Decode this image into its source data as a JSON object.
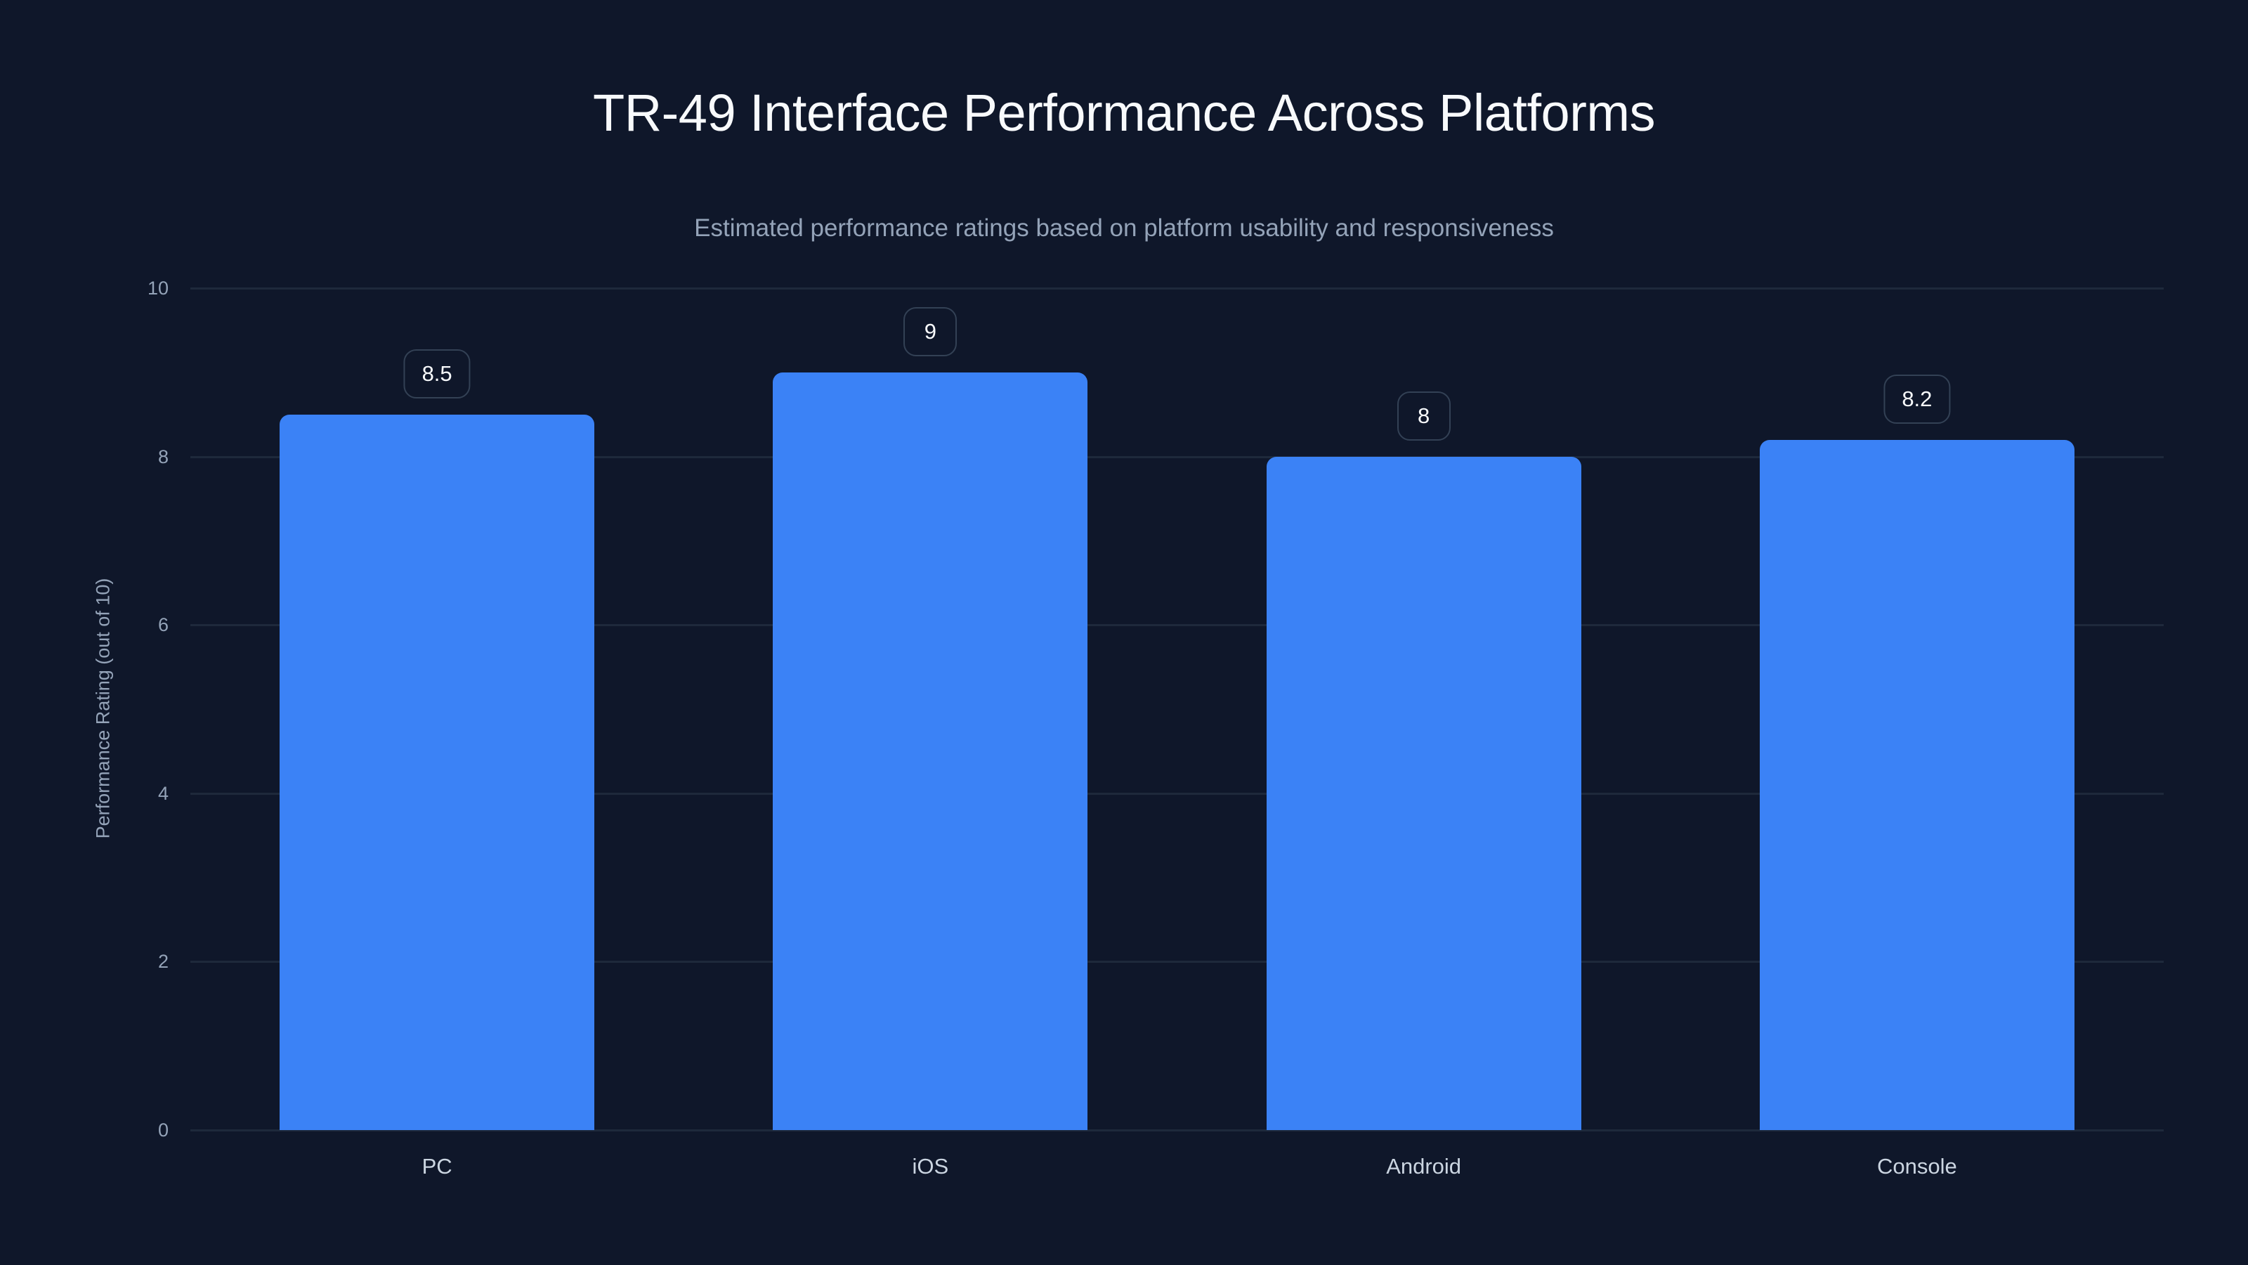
{
  "title": "TR-49 Interface Performance Across Platforms",
  "subtitle": "Estimated performance ratings based on platform usability and responsiveness",
  "colors": {
    "background": "#0f172a",
    "bar": "#3b82f6",
    "grid": "#1e293b",
    "label_border": "#334155"
  },
  "chart_data": {
    "type": "bar",
    "title": "TR-49 Interface Performance Across Platforms",
    "subtitle": "Estimated performance ratings based on platform usability and responsiveness",
    "categories": [
      "PC",
      "iOS",
      "Android",
      "Console"
    ],
    "values": [
      8.5,
      9,
      8,
      8.2
    ],
    "value_labels": [
      "8.5",
      "9",
      "8",
      "8.2"
    ],
    "xlabel": "",
    "ylabel": "Performance Rating (out of 10)",
    "ylim": [
      0,
      10
    ],
    "yticks": [
      "0",
      "2",
      "4",
      "6",
      "8",
      "10"
    ],
    "grid": true,
    "legend": null
  }
}
